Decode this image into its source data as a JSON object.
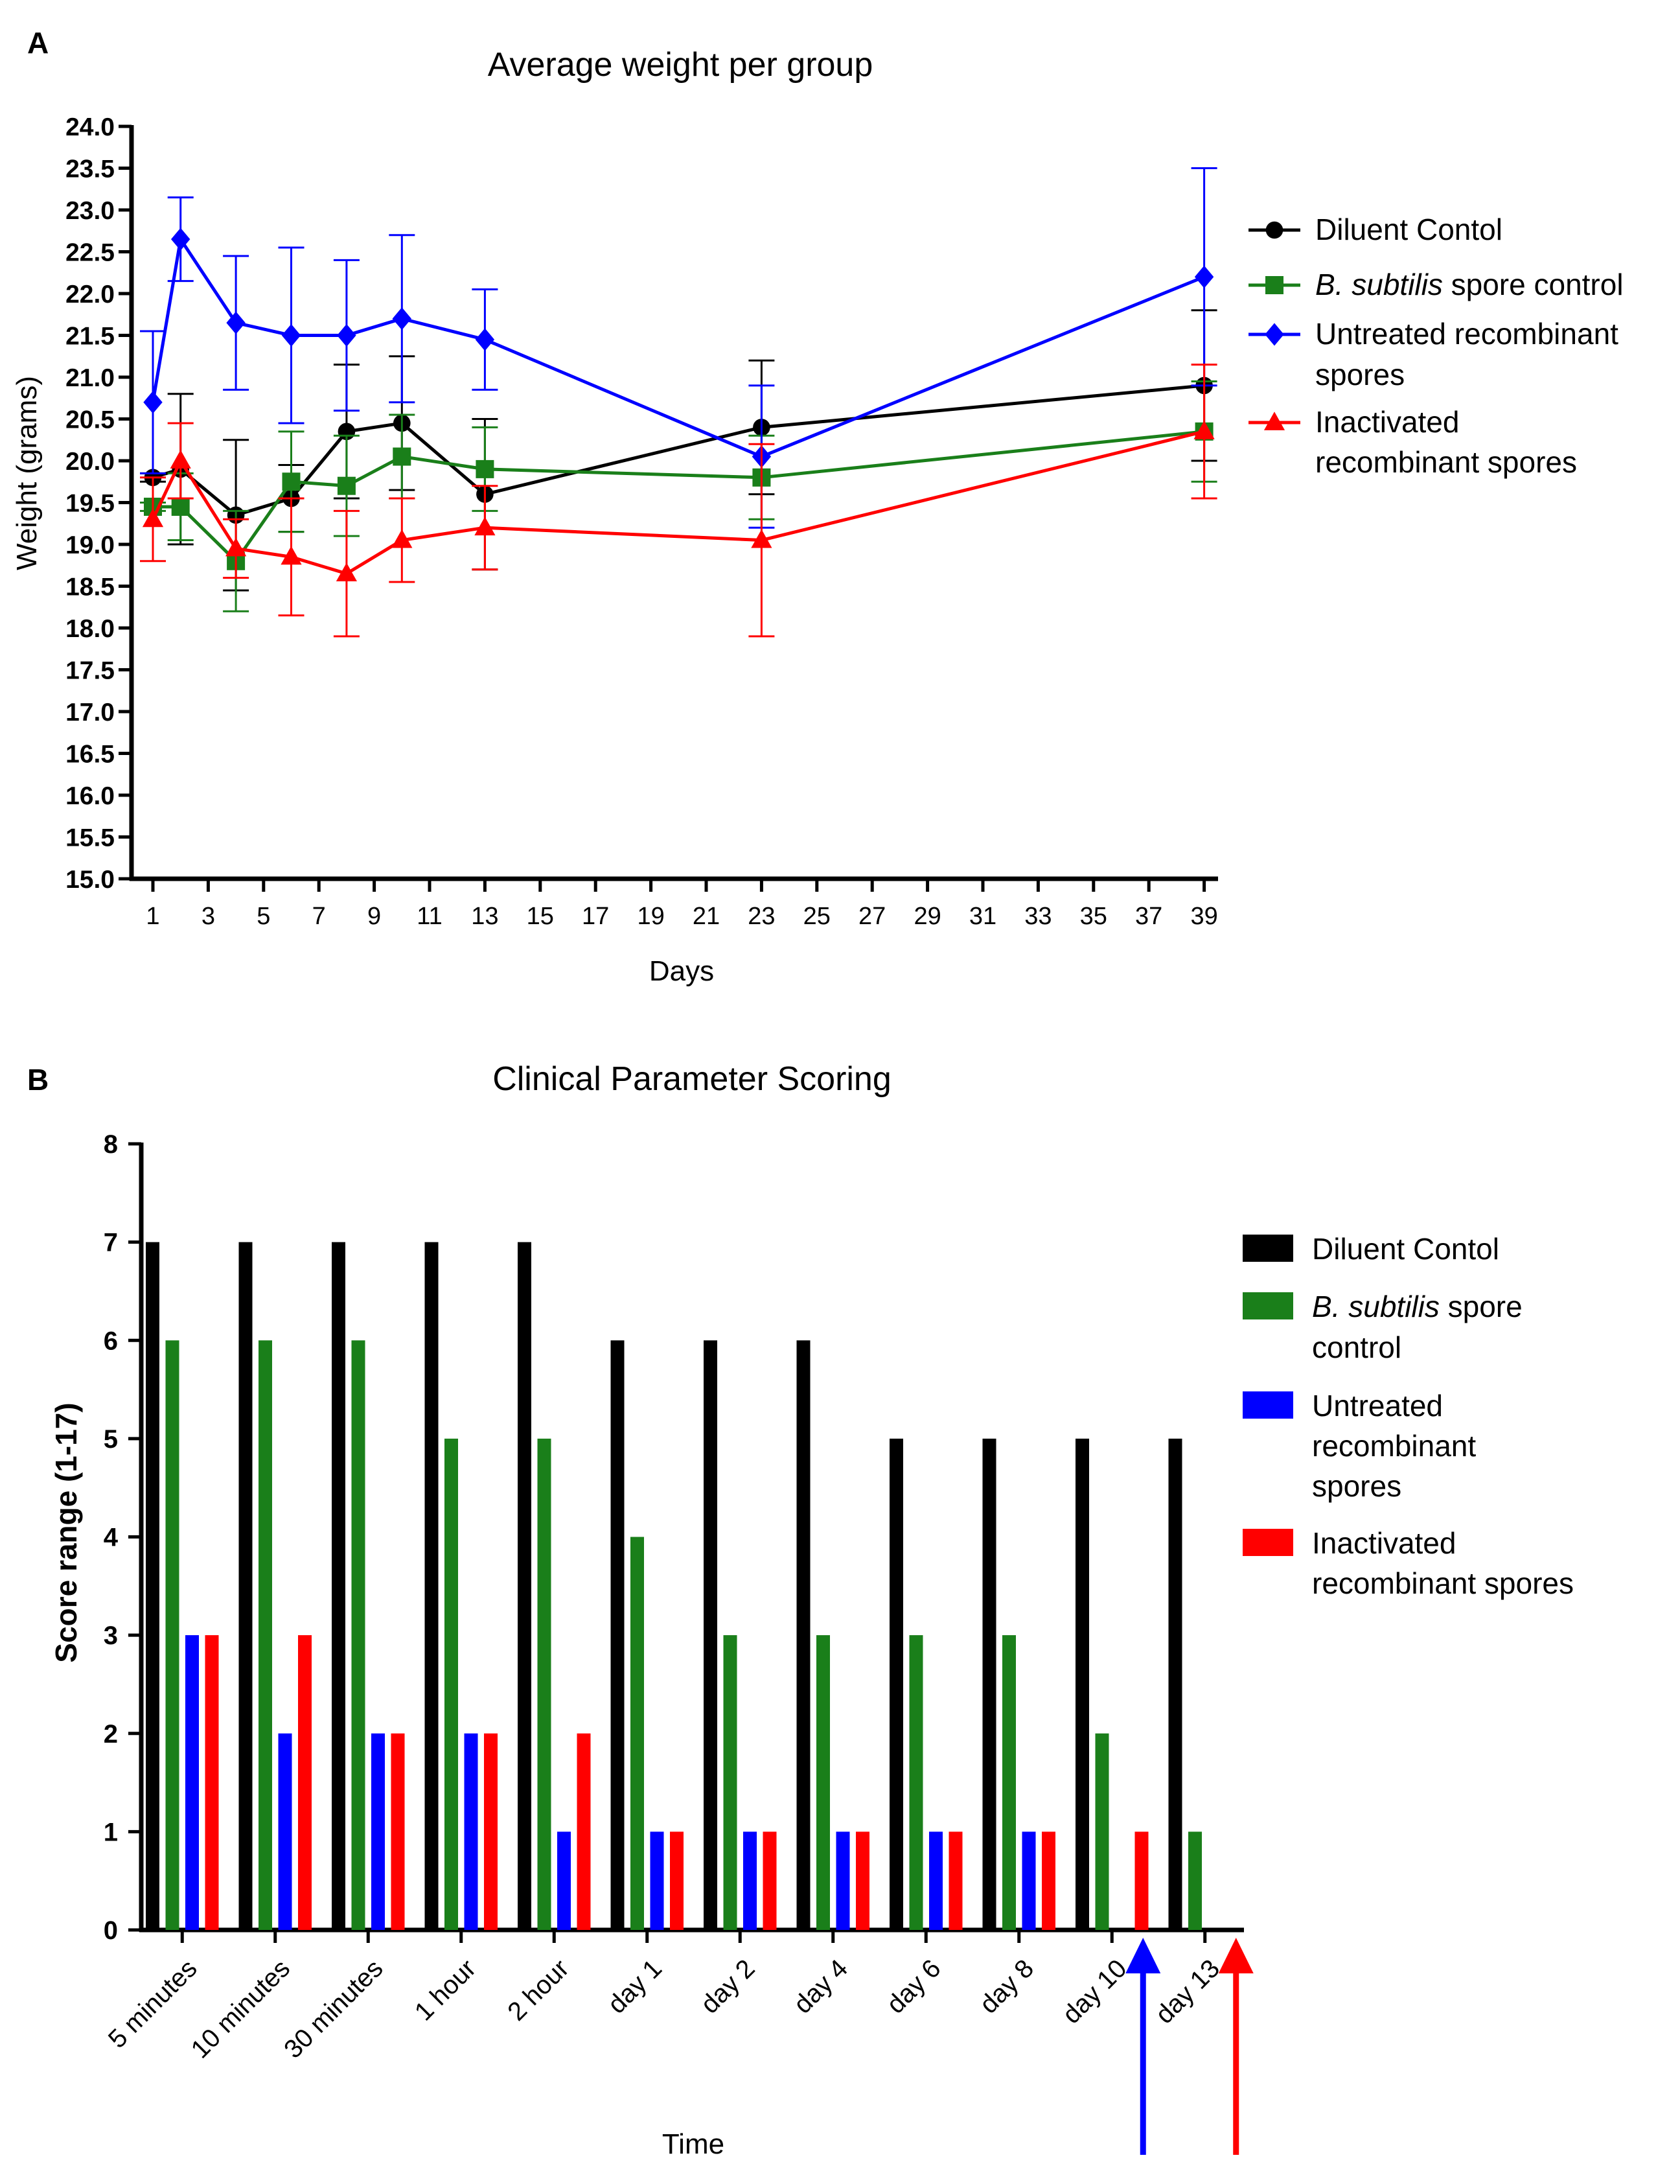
{
  "figure": {
    "panel_a_label": "A",
    "panel_b_label": "B"
  },
  "chart_data": [
    {
      "type": "line",
      "title": "Average weight per group",
      "xlabel": "Days",
      "ylabel": "Weight (grams)",
      "xlim": [
        0,
        40
      ],
      "ylim": [
        15.0,
        24.0
      ],
      "x_ticks": [
        1,
        3,
        5,
        7,
        9,
        11,
        13,
        15,
        17,
        19,
        21,
        23,
        25,
        27,
        29,
        31,
        33,
        35,
        37,
        39
      ],
      "y_ticks": [
        "15.0",
        "15.5",
        "16.0",
        "16.5",
        "17.0",
        "17.5",
        "18.0",
        "18.5",
        "19.0",
        "19.5",
        "20.0",
        "20.5",
        "21.0",
        "21.5",
        "22.0",
        "22.5",
        "23.0",
        "23.5",
        "24.0"
      ],
      "series": [
        {
          "name": "Diluent Contol",
          "color": "#000000",
          "marker": "circle",
          "x": [
            1,
            2,
            4,
            6,
            8,
            10,
            13,
            23,
            39
          ],
          "y": [
            19.8,
            19.9,
            19.35,
            19.55,
            20.35,
            20.45,
            19.6,
            20.4,
            20.9
          ],
          "err": [
            0.05,
            0.9,
            0.9,
            0.4,
            0.8,
            0.8,
            0.9,
            0.8,
            0.9
          ]
        },
        {
          "name": "B. subtilis spore control",
          "color": "#1a7f1a",
          "marker": "square",
          "x": [
            1,
            2,
            4,
            6,
            8,
            10,
            13,
            23,
            39
          ],
          "y": [
            19.45,
            19.45,
            18.8,
            19.75,
            19.7,
            20.05,
            19.9,
            19.8,
            20.35
          ],
          "err": [
            0.05,
            0.4,
            0.6,
            0.6,
            0.6,
            0.5,
            0.5,
            0.5,
            0.6
          ]
        },
        {
          "name": "Untreated recombinant spores",
          "color": "#0000ff",
          "marker": "diamond",
          "x": [
            1,
            2,
            4,
            6,
            8,
            10,
            13,
            23,
            39
          ],
          "y": [
            20.7,
            22.65,
            21.65,
            21.5,
            21.5,
            21.7,
            21.45,
            20.05,
            22.2
          ],
          "err": [
            0.85,
            0.5,
            0.8,
            1.05,
            0.9,
            1.0,
            0.6,
            0.85,
            1.3
          ]
        },
        {
          "name": "Inactivated recombinant spores",
          "color": "#ff0000",
          "marker": "triangle",
          "x": [
            1,
            2,
            4,
            6,
            8,
            10,
            13,
            23,
            39
          ],
          "y": [
            19.3,
            20.0,
            18.95,
            18.85,
            18.65,
            19.05,
            19.2,
            19.05,
            20.35
          ],
          "err": [
            0.5,
            0.45,
            0.35,
            0.7,
            0.75,
            0.5,
            0.5,
            1.15,
            0.8
          ]
        }
      ],
      "legend": {
        "position": "right",
        "lines": [
          {
            "series": 0,
            "parts": [
              {
                "text": "Diluent Contol",
                "italic": false
              }
            ]
          },
          {
            "series": 1,
            "parts": [
              {
                "text": "B. subtilis",
                "italic": true
              },
              {
                "text": " spore control",
                "italic": false
              }
            ]
          },
          {
            "series": 2,
            "parts": [
              {
                "text": "Untreated recombinant",
                "italic": false
              }
            ],
            "cont": "spores"
          },
          {
            "series": 3,
            "parts": [
              {
                "text": "Inactivated",
                "italic": false
              }
            ],
            "cont": "recombinant spores"
          }
        ]
      }
    },
    {
      "type": "bar",
      "title": "Clinical Parameter Scoring",
      "xlabel": "Time",
      "ylabel": "Score range (1-17)",
      "ylim": [
        0,
        8
      ],
      "y_ticks": [
        0,
        1,
        2,
        3,
        4,
        5,
        6,
        7,
        8
      ],
      "categories": [
        "5 minutes",
        "10 minutes",
        "30 minutes",
        "1 hour",
        "2 hour",
        "day 1",
        "day 2",
        "day 4",
        "day 6",
        "day 8",
        "day 10",
        "day 13"
      ],
      "series": [
        {
          "name": "Diluent Contol",
          "color": "#000000",
          "values": [
            7,
            7,
            7,
            7,
            7,
            6,
            6,
            6,
            5,
            5,
            5,
            5
          ]
        },
        {
          "name": "B. subtilis spore control",
          "color": "#1a7f1a",
          "values": [
            6,
            6,
            6,
            5,
            5,
            4,
            3,
            3,
            3,
            3,
            2,
            1
          ]
        },
        {
          "name": "Untreated recombinant spores",
          "color": "#0000ff",
          "values": [
            3,
            2,
            2,
            2,
            1,
            1,
            1,
            1,
            1,
            1,
            0,
            0
          ]
        },
        {
          "name": "Inactivated recombinant spores",
          "color": "#ff0000",
          "values": [
            3,
            3,
            2,
            2,
            2,
            1,
            1,
            1,
            1,
            1,
            1,
            0
          ]
        }
      ],
      "annotations": [
        {
          "type": "arrow",
          "color": "#0000ff",
          "category": "day 10",
          "note": "untreated recombinant spores endpoint"
        },
        {
          "type": "arrow",
          "color": "#ff0000",
          "category": "day 13",
          "note": "inactivated recombinant spores endpoint"
        }
      ],
      "legend": {
        "position": "right",
        "entries": [
          {
            "series": 0,
            "lines": [
              [
                {
                  "text": "Diluent Contol",
                  "italic": false
                }
              ]
            ]
          },
          {
            "series": 1,
            "lines": [
              [
                {
                  "text": "B. subtilis",
                  "italic": true
                },
                {
                  "text": " spore",
                  "italic": false
                }
              ],
              [
                {
                  "text": "control",
                  "italic": false
                }
              ]
            ]
          },
          {
            "series": 2,
            "lines": [
              [
                {
                  "text": "Untreated",
                  "italic": false
                }
              ],
              [
                {
                  "text": "recombinant",
                  "italic": false
                }
              ],
              [
                {
                  "text": "spores",
                  "italic": false
                }
              ]
            ]
          },
          {
            "series": 3,
            "lines": [
              [
                {
                  "text": "Inactivated",
                  "italic": false
                }
              ],
              [
                {
                  "text": "recombinant spores",
                  "italic": false
                }
              ]
            ]
          }
        ]
      }
    }
  ]
}
